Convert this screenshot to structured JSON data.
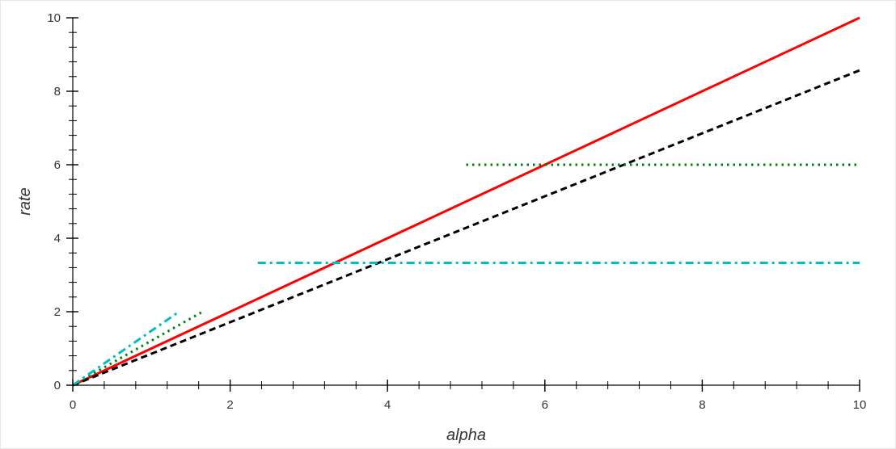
{
  "chart_data": {
    "type": "line",
    "xlabel": "alpha",
    "ylabel": "rate",
    "xlim": [
      0,
      10
    ],
    "ylim": [
      0,
      10
    ],
    "x_ticks": [
      0,
      2,
      4,
      6,
      8,
      10
    ],
    "y_ticks": [
      0,
      2,
      4,
      6,
      8,
      10
    ],
    "x_tick_labels": [
      "0",
      "2",
      "4",
      "6",
      "8",
      "10"
    ],
    "y_tick_labels": [
      "0",
      "2",
      "4",
      "6",
      "8",
      "10"
    ],
    "x_minor_step": 0.4,
    "y_minor_step": 0.4,
    "grid": false,
    "legend": "none",
    "series": [
      {
        "style": "solid",
        "color": "#ff0000",
        "points": [
          [
            0,
            0
          ],
          [
            10,
            10
          ]
        ]
      },
      {
        "style": "dashed",
        "color": "#000000",
        "points": [
          [
            0,
            0
          ],
          [
            10,
            8.57
          ]
        ]
      },
      {
        "style": "dotted",
        "color": "#007f00",
        "points": [
          [
            0,
            0
          ],
          [
            1.65,
            2.0
          ]
        ]
      },
      {
        "style": "dotted",
        "color": "#007f00",
        "points": [
          [
            5.0,
            6.0
          ],
          [
            10,
            6.0
          ]
        ]
      },
      {
        "style": "dashdot",
        "color": "#00bfbf",
        "points": [
          [
            0,
            0
          ],
          [
            1.35,
            2.0
          ]
        ]
      },
      {
        "style": "dashdot",
        "color": "#00bfbf",
        "points": [
          [
            2.35,
            3.33
          ],
          [
            10,
            3.33
          ]
        ]
      }
    ]
  }
}
